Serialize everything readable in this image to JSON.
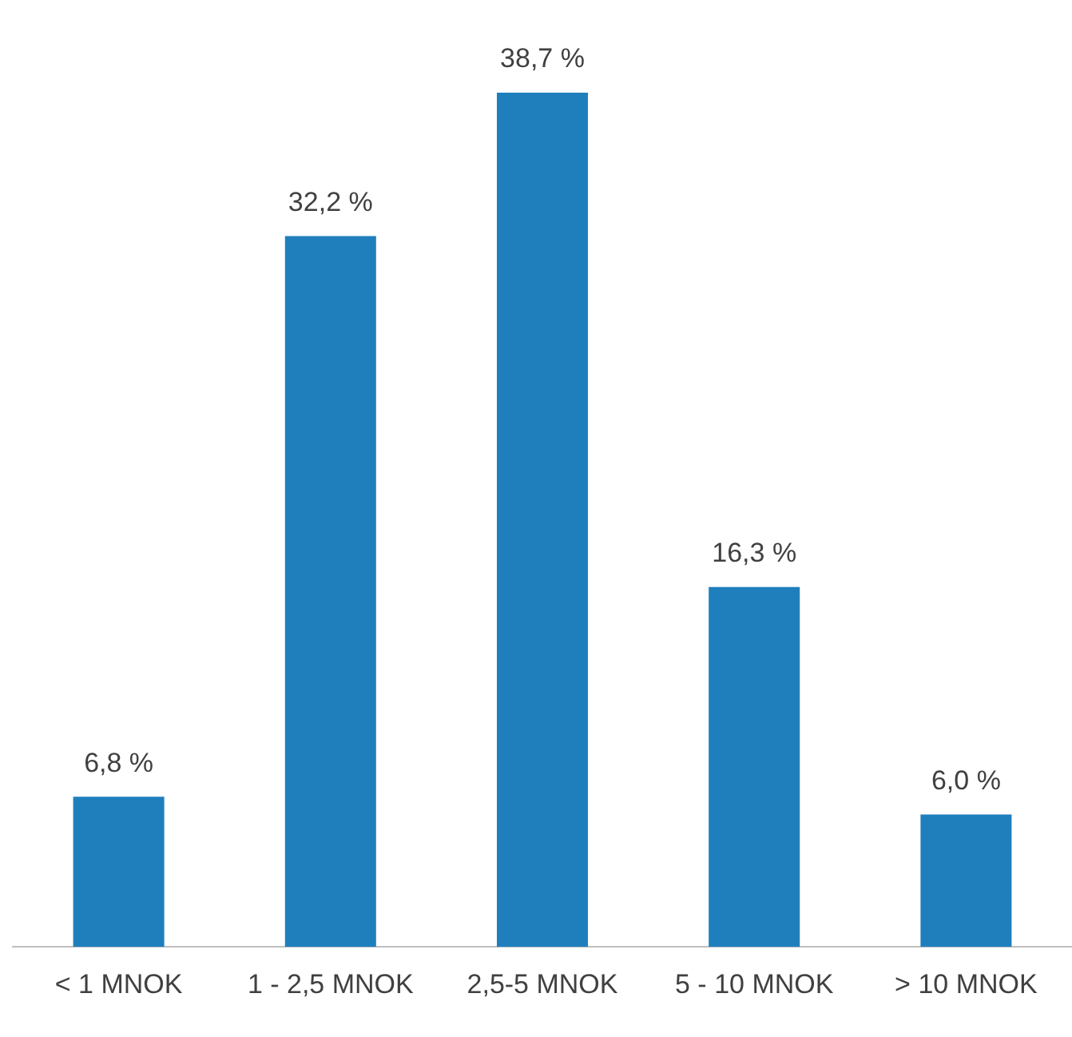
{
  "chart_data": {
    "type": "bar",
    "categories": [
      "< 1 MNOK",
      "1 - 2,5 MNOK",
      "2,5-5 MNOK",
      "5 - 10 MNOK",
      "> 10 MNOK"
    ],
    "values": [
      6.8,
      32.2,
      38.7,
      16.3,
      6.0
    ],
    "value_labels": [
      "6,8 %",
      "32,2 %",
      "38,7 %",
      "16,3 %",
      "6,0 %"
    ],
    "color": "#1f7fbd",
    "grid": false,
    "tick_labels": "x",
    "legend": false
  }
}
